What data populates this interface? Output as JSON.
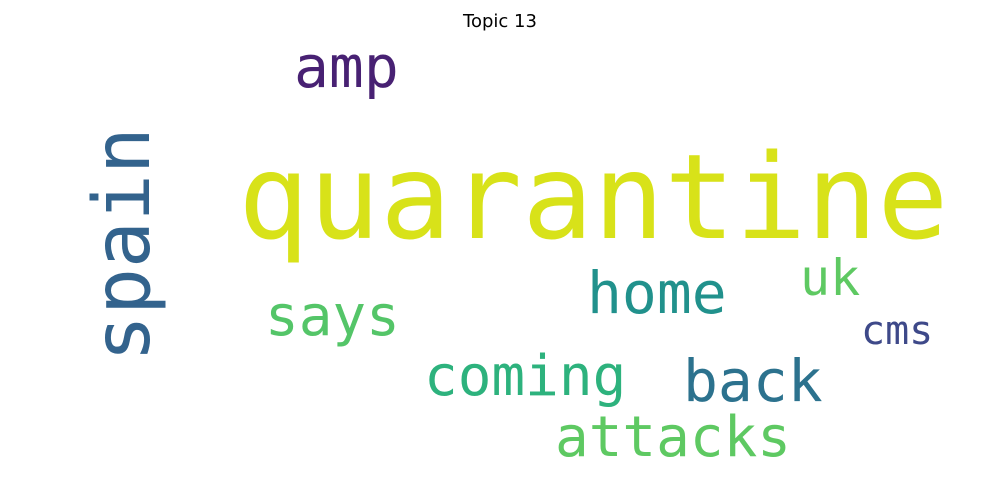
{
  "title": "Topic 13",
  "words": {
    "quarantine": {
      "text": "quarantine",
      "color": "#d8e219"
    },
    "amp": {
      "text": "amp",
      "color": "#482173"
    },
    "spain": {
      "text": "spain",
      "color": "#33638d"
    },
    "home": {
      "text": "home",
      "color": "#21918c"
    },
    "uk": {
      "text": "uk",
      "color": "#5ec962"
    },
    "says": {
      "text": "says",
      "color": "#54c568"
    },
    "cms": {
      "text": "cms",
      "color": "#3e4989"
    },
    "coming": {
      "text": "coming",
      "color": "#2db27d"
    },
    "back": {
      "text": "back",
      "color": "#2c728e"
    },
    "attacks": {
      "text": "attacks",
      "color": "#5ec962"
    }
  }
}
